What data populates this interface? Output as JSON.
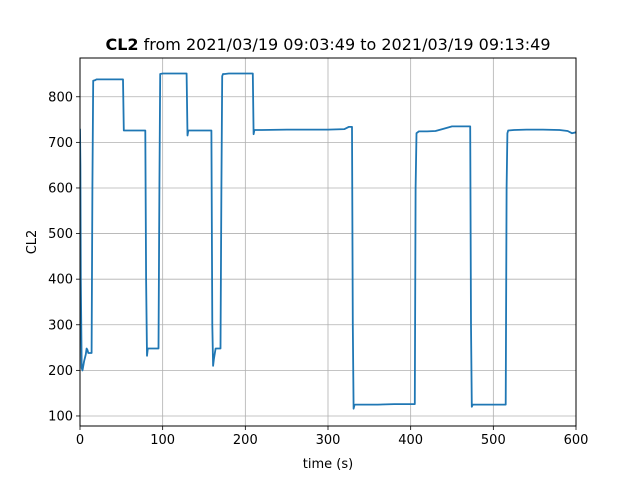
{
  "chart_data": {
    "type": "line",
    "title_bold": "CL2",
    "title_rest": " from 2021/03/19 09:03:49 to 2021/03/19 09:13:49",
    "xlabel": "time (s)",
    "ylabel": "CL2",
    "xlim": [
      0,
      600
    ],
    "ylim": [
      78,
      885
    ],
    "xticks": [
      0,
      100,
      200,
      300,
      400,
      500,
      600
    ],
    "yticks": [
      100,
      200,
      300,
      400,
      500,
      600,
      700,
      800
    ],
    "grid": true,
    "series": [
      {
        "color": "#1f77b4",
        "x": [
          0,
          0.5,
          1,
          2,
          3,
          5,
          7,
          8,
          9,
          10,
          12,
          14,
          15,
          16,
          18,
          20,
          25,
          30,
          40,
          52,
          53,
          55,
          60,
          70,
          79,
          80,
          81,
          82,
          84,
          90,
          95,
          96,
          97,
          100,
          110,
          120,
          129,
          130,
          131,
          133,
          140,
          150,
          159,
          160,
          161,
          162,
          164,
          166,
          170,
          171,
          172,
          173,
          175,
          180,
          190,
          200,
          209,
          210,
          211,
          212,
          220,
          250,
          300,
          320,
          325,
          329,
          330,
          331,
          332,
          333,
          340,
          360,
          380,
          400,
          405,
          406,
          407,
          410,
          420,
          430,
          440,
          450,
          460,
          472,
          473,
          474,
          475,
          480,
          490,
          500,
          515,
          516,
          517,
          518,
          525,
          540,
          560,
          580,
          590,
          595,
          600
        ],
        "y": [
          730,
          650,
          400,
          205,
          200,
          220,
          235,
          248,
          245,
          238,
          238,
          238,
          600,
          835,
          836,
          838,
          838,
          838,
          838,
          838,
          726,
          726,
          726,
          726,
          726,
          400,
          232,
          248,
          248,
          248,
          248,
          600,
          850,
          851,
          851,
          851,
          851,
          715,
          726,
          726,
          726,
          726,
          726,
          300,
          210,
          225,
          248,
          248,
          248,
          600,
          845,
          850,
          850,
          851,
          851,
          851,
          851,
          718,
          727,
          727,
          727,
          728,
          728,
          729,
          734,
          734,
          300,
          116,
          124,
          125,
          125,
          125,
          126,
          126,
          126,
          600,
          720,
          724,
          724,
          725,
          730,
          735,
          735,
          735,
          300,
          120,
          125,
          125,
          125,
          125,
          125,
          600,
          720,
          726,
          727,
          728,
          728,
          727,
          725,
          720,
          722
        ]
      }
    ]
  }
}
